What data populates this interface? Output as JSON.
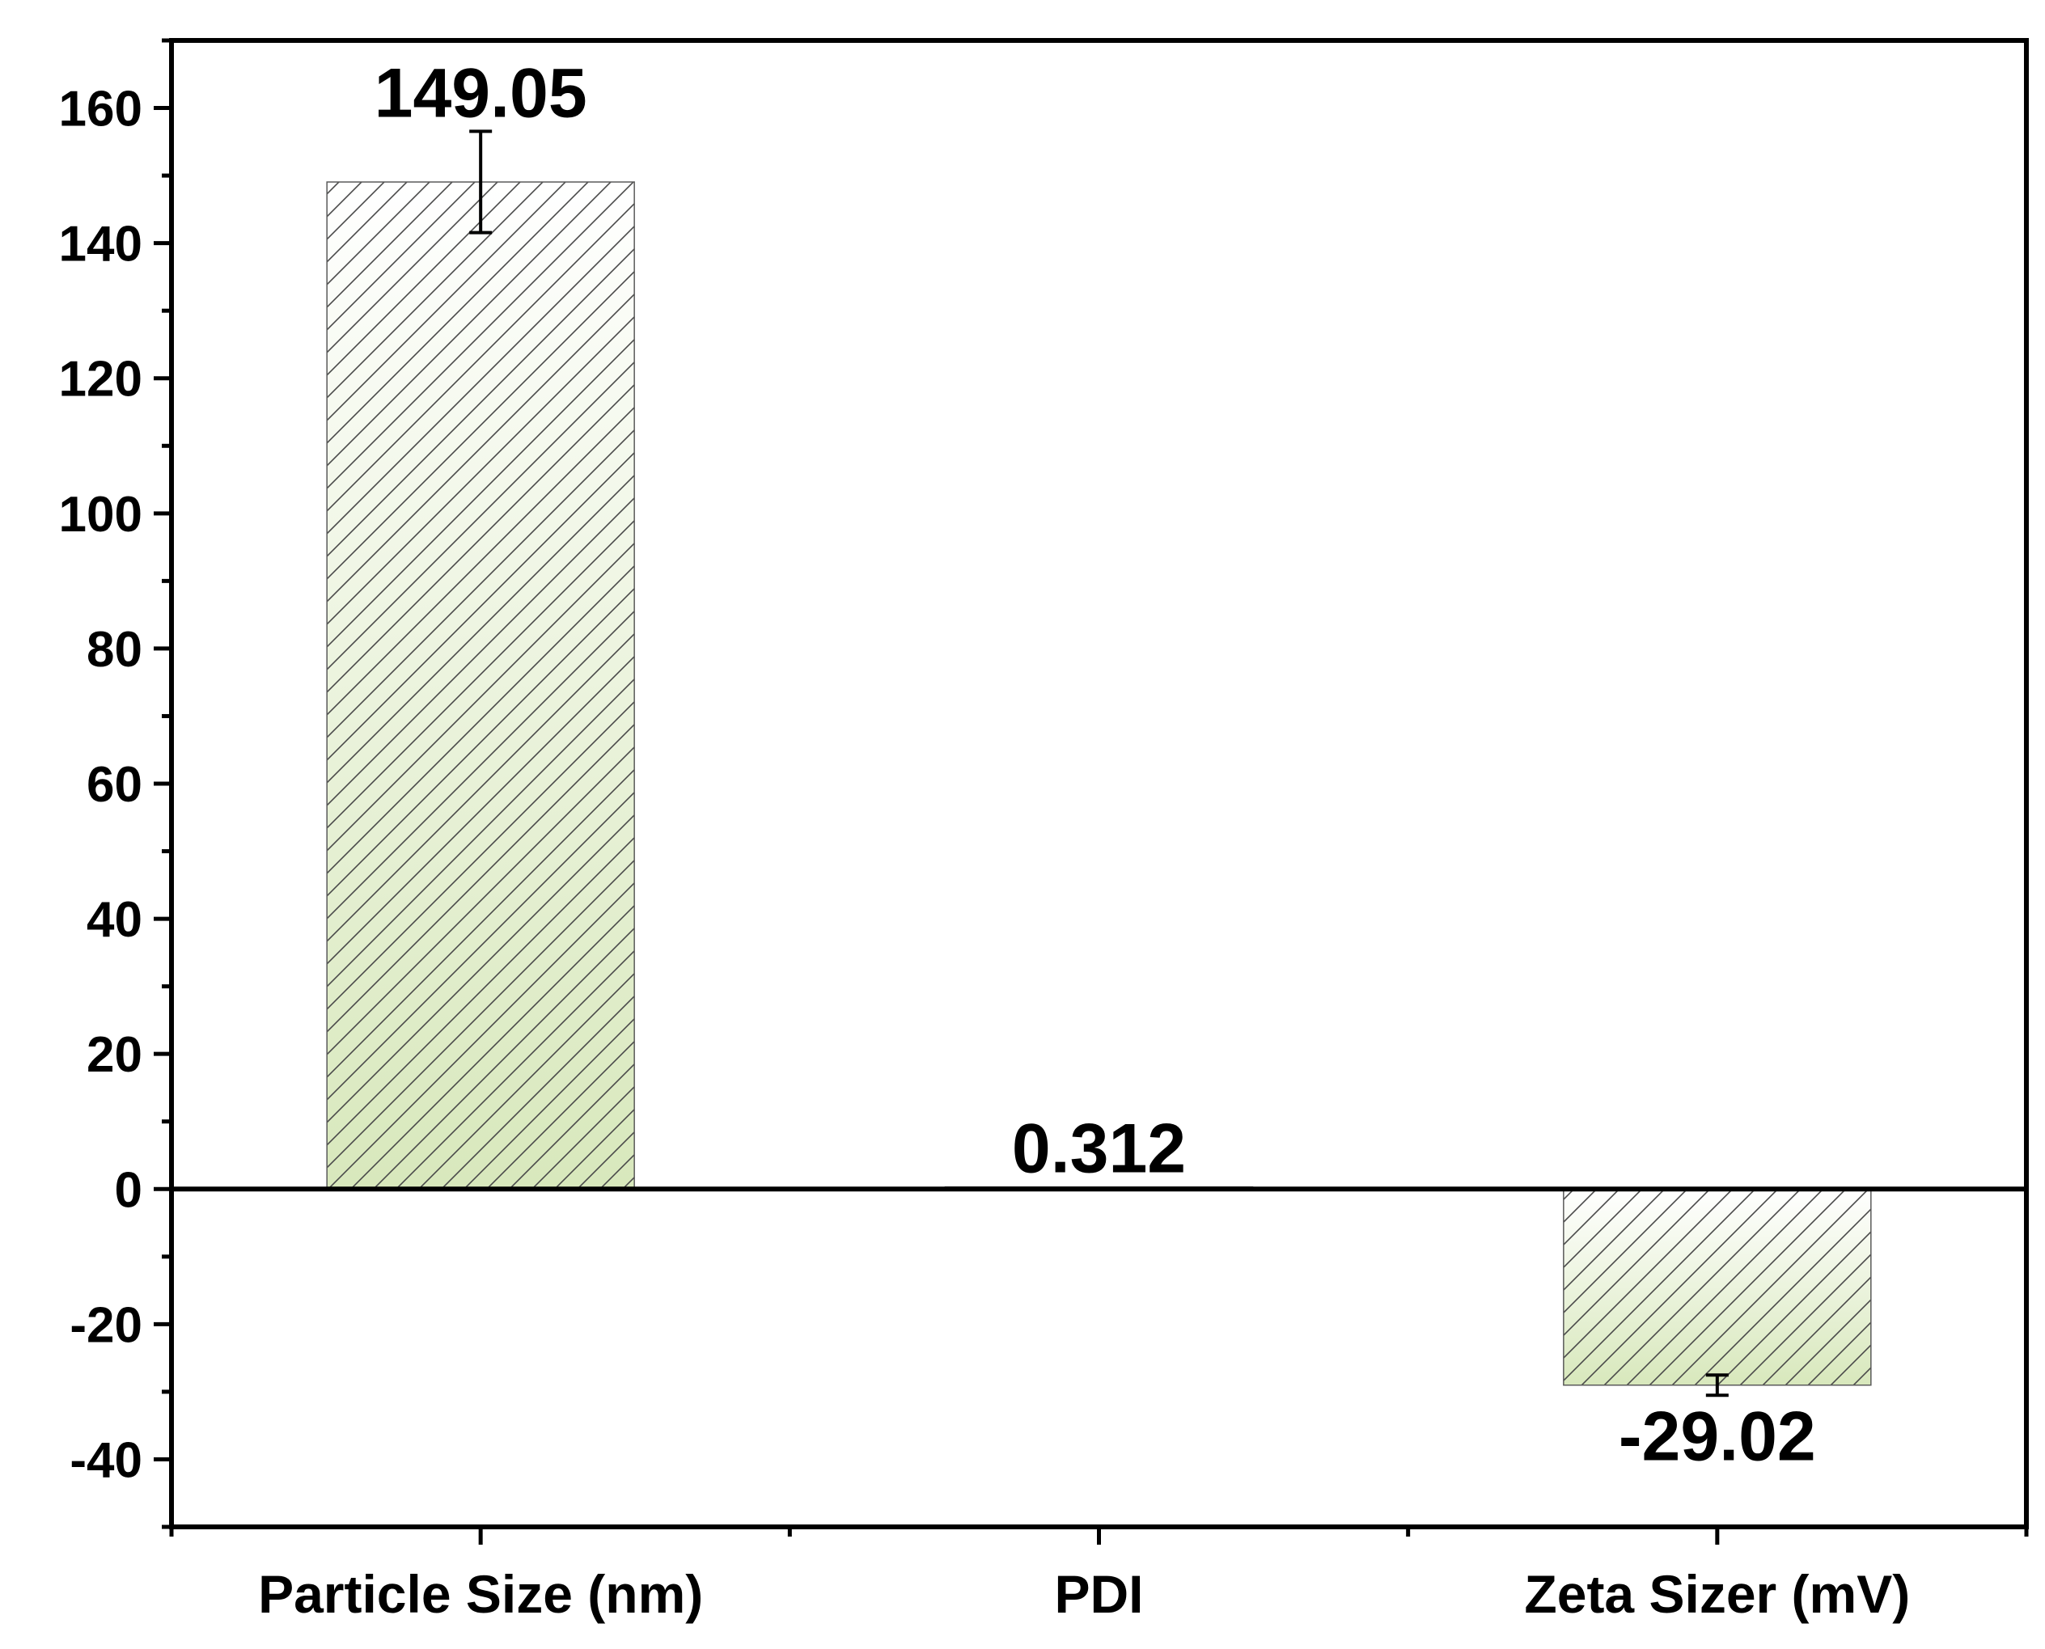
{
  "chart_data": {
    "type": "bar",
    "categories": [
      "Particle Size (nm)",
      "PDI",
      "Zeta Sizer (mV)"
    ],
    "values": [
      149.05,
      0.312,
      -29.02
    ],
    "error": [
      7.5,
      0.0,
      1.5
    ],
    "data_labels": [
      "149.05",
      "0.312",
      "-29.02"
    ],
    "title": "",
    "xlabel": "",
    "ylabel": "",
    "ylim": [
      -50,
      170
    ],
    "yticks": [
      -40,
      -20,
      0,
      20,
      40,
      60,
      80,
      100,
      120,
      140,
      160
    ],
    "ytick_labels": [
      "-40",
      "-20",
      "0",
      "20",
      "40",
      "60",
      "80",
      "100",
      "120",
      "140",
      "160"
    ],
    "grid": false,
    "bar_fill": "#d8e8bc",
    "bar_fill_top": "#ffffff",
    "bar_stroke": "#5a5a5a",
    "hatch": "diagonal"
  }
}
